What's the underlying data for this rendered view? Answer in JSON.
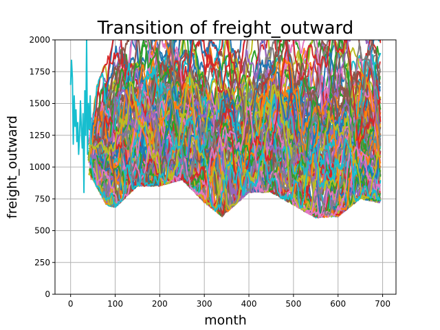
{
  "chart_data": {
    "type": "line",
    "title": "Transition of freight_outward",
    "xlabel": "month",
    "ylabel": "freight_outward",
    "xlim": [
      -35,
      730
    ],
    "ylim": [
      0,
      2000
    ],
    "x_ticks": [
      0,
      100,
      200,
      300,
      400,
      500,
      600,
      700
    ],
    "y_ticks": [
      0,
      250,
      500,
      750,
      1000,
      1250,
      1500,
      1750,
      2000
    ],
    "x_tick_labels": [
      "0",
      "100",
      "200",
      "300",
      "400",
      "500",
      "600",
      "700"
    ],
    "y_tick_labels": [
      "0",
      "250",
      "500",
      "750",
      "1000",
      "1250",
      "1500",
      "1750",
      "2000"
    ],
    "grid": true,
    "legend": "none",
    "palette": [
      "#1f77b4",
      "#ff7f0e",
      "#2ca02c",
      "#d62728",
      "#9467bd",
      "#8c564b",
      "#e377c2",
      "#7f7f7f",
      "#bcbd22",
      "#17becf"
    ],
    "series_count": 100,
    "month_range": [
      0,
      695
    ],
    "initial_segment": {
      "x": [
        0,
        2,
        4,
        6,
        8,
        10,
        12,
        14,
        16,
        18,
        20,
        22,
        24,
        26,
        28,
        30,
        32,
        34,
        36,
        38,
        40,
        42,
        44,
        46
      ],
      "y": [
        1650,
        1840,
        1700,
        1180,
        1560,
        1320,
        1450,
        1200,
        1350,
        1100,
        1250,
        1520,
        1300,
        1150,
        1420,
        800,
        1600,
        1250,
        2000,
        1100,
        1500,
        1300,
        1560,
        1180
      ]
    },
    "envelope": {
      "x": [
        50,
        80,
        100,
        150,
        200,
        250,
        300,
        340,
        400,
        450,
        500,
        550,
        600,
        650,
        690
      ],
      "min": [
        900,
        700,
        680,
        850,
        850,
        900,
        720,
        610,
        800,
        800,
        700,
        600,
        610,
        750,
        720
      ],
      "max": [
        1400,
        1700,
        2000,
        2000,
        2000,
        2000,
        2000,
        2000,
        2000,
        2000,
        2000,
        2000,
        2000,
        2000,
        2000
      ],
      "mean": [
        1150,
        1100,
        1250,
        1350,
        1300,
        1350,
        1200,
        1150,
        1300,
        1350,
        1250,
        1200,
        1250,
        1300,
        1350
      ]
    }
  }
}
